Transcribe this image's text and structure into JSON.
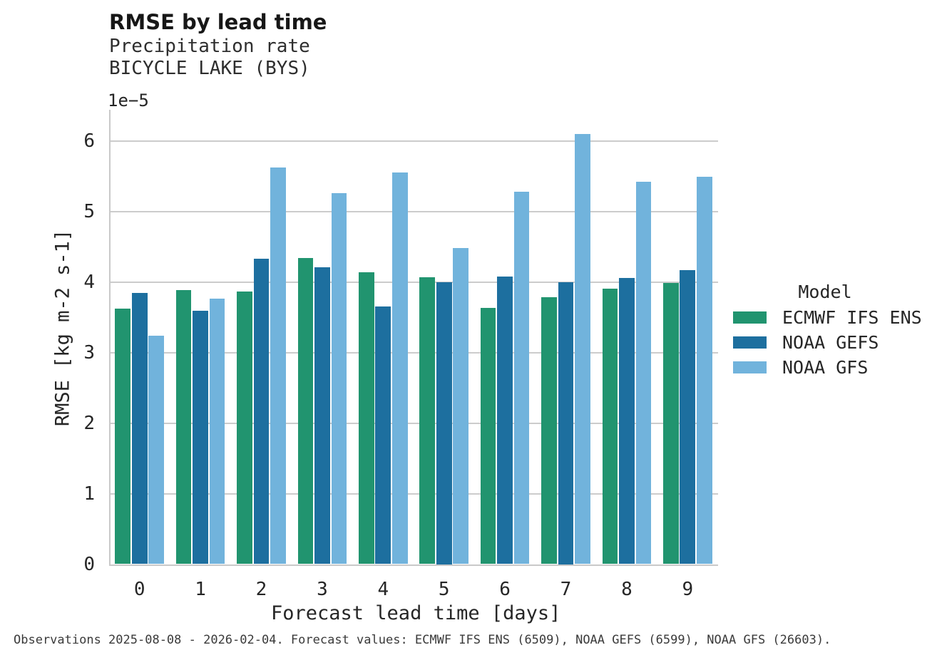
{
  "title": "RMSE by lead time",
  "subtitle1": "Precipitation rate",
  "subtitle2": "BICYCLE LAKE (BYS)",
  "offset_label": "1e−5",
  "footer": "Observations 2025-08-08 - 2026-02-04. Forecast values: ECMWF IFS ENS (6509), NOAA GEFS (6599), NOAA GFS (26603).",
  "legend": {
    "title": "Model"
  },
  "colors": {
    "ecmwf_green": "#21946f",
    "gefs_blue": "#1d6f9f",
    "gfs_lightblue": "#71b3dc",
    "gridline": "#cccccc",
    "text": "#262626"
  },
  "chart_data": {
    "type": "bar",
    "title": "RMSE by lead time",
    "subtitle": [
      "Precipitation rate",
      "BICYCLE LAKE (BYS)"
    ],
    "xlabel": "Forecast lead time [days]",
    "ylabel": "RMSE [kg m-2 s-1]",
    "y_offset_factor": "1e-5",
    "unit_multiplier": 1e-05,
    "categories": [
      "0",
      "1",
      "2",
      "3",
      "4",
      "5",
      "6",
      "7",
      "8",
      "9"
    ],
    "y_ticks": [
      0,
      1,
      2,
      3,
      4,
      5,
      6
    ],
    "ylim": [
      0,
      6.44
    ],
    "grid": true,
    "legend_position": "right",
    "legend_title": "Model",
    "series": [
      {
        "name": "ECMWF IFS ENS",
        "color": "#21946f",
        "values": [
          3.62,
          3.88,
          3.86,
          4.34,
          4.14,
          4.07,
          3.63,
          3.78,
          3.9,
          3.98
        ]
      },
      {
        "name": "NOAA GEFS",
        "color": "#1d6f9f",
        "values": [
          3.84,
          3.59,
          4.33,
          4.21,
          3.65,
          4.0,
          4.08,
          4.0,
          4.06,
          4.17
        ]
      },
      {
        "name": "NOAA GFS",
        "color": "#71b3dc",
        "values": [
          3.24,
          3.76,
          5.62,
          5.26,
          5.55,
          4.48,
          5.28,
          6.1,
          5.42,
          5.49
        ]
      }
    ]
  }
}
